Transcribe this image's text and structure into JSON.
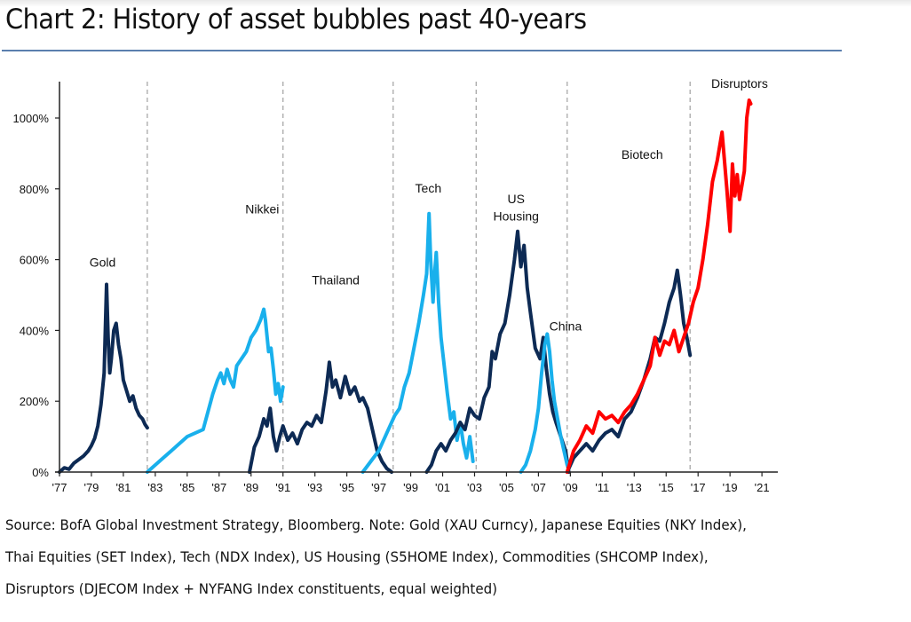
{
  "header": {
    "title": "Chart 2: History of asset bubbles past 40-years"
  },
  "footer": {
    "lines": [
      "Source: BofA Global Investment Strategy, Bloomberg. Note: Gold (XAU Curncy), Japanese Equities (NKY Index),",
      "Thai Equities (SET Index), Tech (NDX Index), US Housing (S5HOME Index), Commodities (SHCOMP Index),",
      "Disruptors (DJECOM Index + NYFANG Index constituents, equal weighted)"
    ]
  },
  "colors": {
    "navy": "#0d2a54",
    "light_blue": "#19b0ec",
    "red": "#ff0000",
    "divider": "#a8a8a8",
    "title_rule": "#5b7fae"
  },
  "chart_data": {
    "type": "line",
    "title": "Chart 2: History of asset bubbles past 40-years",
    "xlabel": "",
    "ylabel": "",
    "x_range": [
      1977,
      2022
    ],
    "ylim": [
      0,
      1100
    ],
    "y_ticks": [
      0,
      200,
      400,
      600,
      800,
      1000
    ],
    "y_tick_labels": [
      "0%",
      "200%",
      "400%",
      "600%",
      "800%",
      "1000%"
    ],
    "x_ticks": [
      1977,
      1979,
      1981,
      1983,
      1985,
      1987,
      1989,
      1991,
      1993,
      1995,
      1997,
      1999,
      2001,
      2003,
      2005,
      2007,
      2009,
      2011,
      2013,
      2015,
      2017,
      2019,
      2021
    ],
    "x_tick_labels": [
      "'77",
      "'79",
      "'81",
      "'83",
      "'85",
      "'87",
      "'89",
      "'91",
      "'93",
      "'95",
      "'97",
      "'99",
      "'01",
      "'03",
      "'05",
      "'07",
      "'09",
      "'11",
      "'13",
      "'15",
      "'17",
      "'19",
      "'21"
    ],
    "grid": false,
    "legend": "none (inline annotations)",
    "dividers_x": [
      1982.5,
      1991.0,
      1997.9,
      2003.1,
      2008.8,
      2016.5
    ],
    "annotations": [
      {
        "text": "Gold",
        "x": 1979.7,
        "y": 580
      },
      {
        "text": "Nikkei",
        "x": 1989.7,
        "y": 730
      },
      {
        "text": "Thailand",
        "x": 1994.3,
        "y": 530
      },
      {
        "text": "Tech",
        "x": 2000.1,
        "y": 790
      },
      {
        "text": "US",
        "x": 2005.6,
        "y": 760
      },
      {
        "text": "Housing",
        "x": 2005.6,
        "y": 710
      },
      {
        "text": "China",
        "x": 2008.7,
        "y": 400
      },
      {
        "text": "Biotech",
        "x": 2013.5,
        "y": 885
      },
      {
        "text": "Disruptors",
        "x": 2019.6,
        "y": 1085
      }
    ],
    "series": [
      {
        "name": "Gold",
        "color": "navy",
        "x": [
          1977.0,
          1977.3,
          1977.6,
          1977.9,
          1978.2,
          1978.5,
          1978.8,
          1979.0,
          1979.2,
          1979.4,
          1979.6,
          1979.8,
          1979.95,
          1980.05,
          1980.15,
          1980.25,
          1980.4,
          1980.55,
          1980.7,
          1980.85,
          1981.0,
          1981.2,
          1981.4,
          1981.6,
          1981.8,
          1982.0,
          1982.2,
          1982.35,
          1982.5
        ],
        "values": [
          0,
          12,
          8,
          25,
          35,
          45,
          60,
          75,
          95,
          130,
          190,
          280,
          530,
          380,
          280,
          320,
          400,
          420,
          360,
          320,
          260,
          230,
          200,
          215,
          180,
          160,
          150,
          135,
          125
        ]
      },
      {
        "name": "Nikkei",
        "color": "light_blue",
        "x": [
          1982.5,
          1983.0,
          1983.5,
          1984.0,
          1984.5,
          1985.0,
          1985.5,
          1986.0,
          1986.3,
          1986.6,
          1986.9,
          1987.1,
          1987.3,
          1987.5,
          1987.7,
          1987.9,
          1988.1,
          1988.4,
          1988.7,
          1989.0,
          1989.3,
          1989.6,
          1989.8,
          1989.9,
          1990.1,
          1990.25,
          1990.4,
          1990.55,
          1990.7,
          1990.85,
          1991.0
        ],
        "values": [
          0,
          20,
          40,
          60,
          80,
          100,
          110,
          120,
          170,
          220,
          260,
          280,
          250,
          290,
          260,
          240,
          300,
          320,
          340,
          380,
          400,
          430,
          460,
          430,
          340,
          350,
          290,
          220,
          250,
          200,
          240
        ]
      },
      {
        "name": "Thailand",
        "color": "navy",
        "x": [
          1988.9,
          1989.2,
          1989.5,
          1989.8,
          1990.0,
          1990.2,
          1990.4,
          1990.6,
          1990.8,
          1991.0,
          1991.3,
          1991.6,
          1991.9,
          1992.2,
          1992.5,
          1992.8,
          1993.1,
          1993.4,
          1993.7,
          1993.9,
          1994.1,
          1994.3,
          1994.6,
          1994.9,
          1995.2,
          1995.5,
          1995.8,
          1996.0,
          1996.3,
          1996.6,
          1996.9,
          1997.2,
          1997.5,
          1997.8
        ],
        "values": [
          0,
          70,
          100,
          150,
          130,
          180,
          100,
          60,
          100,
          130,
          90,
          110,
          80,
          120,
          140,
          130,
          160,
          140,
          230,
          310,
          240,
          260,
          210,
          270,
          220,
          240,
          200,
          210,
          180,
          120,
          60,
          30,
          10,
          0
        ]
      },
      {
        "name": "Tech",
        "color": "light_blue",
        "x": [
          1996.0,
          1996.5,
          1997.0,
          1997.5,
          1998.0,
          1998.3,
          1998.6,
          1998.9,
          1999.2,
          1999.5,
          1999.8,
          2000.0,
          2000.15,
          2000.25,
          2000.4,
          2000.5,
          2000.6,
          2000.75,
          2000.9,
          2001.1,
          2001.3,
          2001.5,
          2001.7,
          2001.9,
          2002.1,
          2002.3,
          2002.5,
          2002.7,
          2002.9
        ],
        "values": [
          0,
          30,
          60,
          110,
          160,
          180,
          240,
          280,
          350,
          420,
          500,
          560,
          730,
          600,
          480,
          560,
          620,
          480,
          380,
          300,
          220,
          150,
          170,
          90,
          140,
          80,
          40,
          100,
          30
        ]
      },
      {
        "name": "US Housing",
        "color": "navy",
        "x": [
          2000.0,
          2000.3,
          2000.6,
          2000.9,
          2001.2,
          2001.5,
          2001.8,
          2002.1,
          2002.4,
          2002.7,
          2003.0,
          2003.3,
          2003.6,
          2003.9,
          2004.1,
          2004.3,
          2004.6,
          2004.9,
          2005.2,
          2005.5,
          2005.7,
          2005.9,
          2006.1,
          2006.3,
          2006.5,
          2006.8,
          2007.1,
          2007.3,
          2007.5,
          2007.7,
          2007.9,
          2008.1,
          2008.4,
          2008.7,
          2008.9
        ],
        "values": [
          0,
          20,
          60,
          80,
          60,
          90,
          110,
          140,
          120,
          180,
          160,
          150,
          210,
          240,
          340,
          320,
          390,
          420,
          500,
          600,
          680,
          580,
          640,
          520,
          450,
          350,
          320,
          380,
          290,
          220,
          170,
          140,
          100,
          60,
          0
        ]
      },
      {
        "name": "China",
        "color": "light_blue",
        "x": [
          2005.9,
          2006.2,
          2006.5,
          2006.8,
          2007.0,
          2007.2,
          2007.4,
          2007.55,
          2007.7,
          2007.85,
          2008.0,
          2008.2,
          2008.4,
          2008.6,
          2008.8
        ],
        "values": [
          0,
          20,
          60,
          120,
          180,
          280,
          360,
          390,
          340,
          260,
          200,
          150,
          100,
          60,
          20
        ]
      },
      {
        "name": "Biotech",
        "color": "navy",
        "x": [
          2008.8,
          2009.2,
          2009.6,
          2010.0,
          2010.4,
          2010.8,
          2011.2,
          2011.6,
          2012.0,
          2012.4,
          2012.8,
          2013.2,
          2013.6,
          2014.0,
          2014.3,
          2014.6,
          2014.9,
          2015.2,
          2015.5,
          2015.7,
          2015.9,
          2016.1,
          2016.3,
          2016.5
        ],
        "values": [
          0,
          40,
          60,
          80,
          60,
          90,
          110,
          120,
          100,
          150,
          170,
          210,
          260,
          320,
          380,
          370,
          420,
          480,
          520,
          570,
          500,
          420,
          380,
          330
        ]
      },
      {
        "name": "Disruptors",
        "color": "red",
        "x": [
          2008.8,
          2009.2,
          2009.6,
          2010.0,
          2010.4,
          2010.8,
          2011.2,
          2011.6,
          2012.0,
          2012.4,
          2012.8,
          2013.2,
          2013.6,
          2014.0,
          2014.3,
          2014.6,
          2014.9,
          2015.2,
          2015.5,
          2015.8,
          2016.1,
          2016.4,
          2016.7,
          2017.0,
          2017.3,
          2017.6,
          2017.9,
          2018.2,
          2018.5,
          2018.8,
          2019.0,
          2019.15,
          2019.3,
          2019.45,
          2019.6,
          2019.75,
          2019.9,
          2020.05,
          2020.2,
          2020.3
        ],
        "values": [
          0,
          60,
          90,
          130,
          110,
          170,
          150,
          160,
          140,
          170,
          190,
          220,
          260,
          300,
          380,
          330,
          370,
          360,
          400,
          340,
          380,
          420,
          480,
          520,
          600,
          700,
          820,
          880,
          960,
          800,
          680,
          870,
          780,
          840,
          770,
          810,
          850,
          1000,
          1050,
          1040
        ]
      }
    ]
  }
}
